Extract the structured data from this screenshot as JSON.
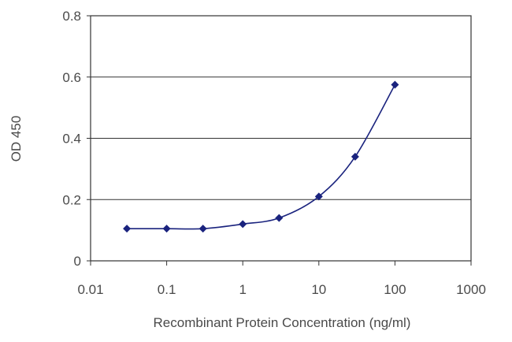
{
  "chart_data": {
    "type": "line",
    "title": "",
    "xlabel": "Recombinant Protein Concentration (ng/ml)",
    "ylabel": "OD 450",
    "x_scale": "log",
    "xlim": [
      0.01,
      1000
    ],
    "ylim": [
      0,
      0.8
    ],
    "x_ticks": [
      "0.01",
      "0.1",
      "1",
      "10",
      "100",
      "1000"
    ],
    "y_ticks": [
      "0",
      "0.2",
      "0.4",
      "0.6",
      "0.8"
    ],
    "grid": "horizontal",
    "legend": "none",
    "series": [
      {
        "color": "#1a237e",
        "marker": "diamond",
        "points": [
          {
            "x": 0.03,
            "y": 0.105
          },
          {
            "x": 0.1,
            "y": 0.105
          },
          {
            "x": 0.3,
            "y": 0.105
          },
          {
            "x": 1,
            "y": 0.12
          },
          {
            "x": 3,
            "y": 0.14
          },
          {
            "x": 10,
            "y": 0.21
          },
          {
            "x": 30,
            "y": 0.34
          },
          {
            "x": 100,
            "y": 0.575
          }
        ]
      }
    ]
  }
}
